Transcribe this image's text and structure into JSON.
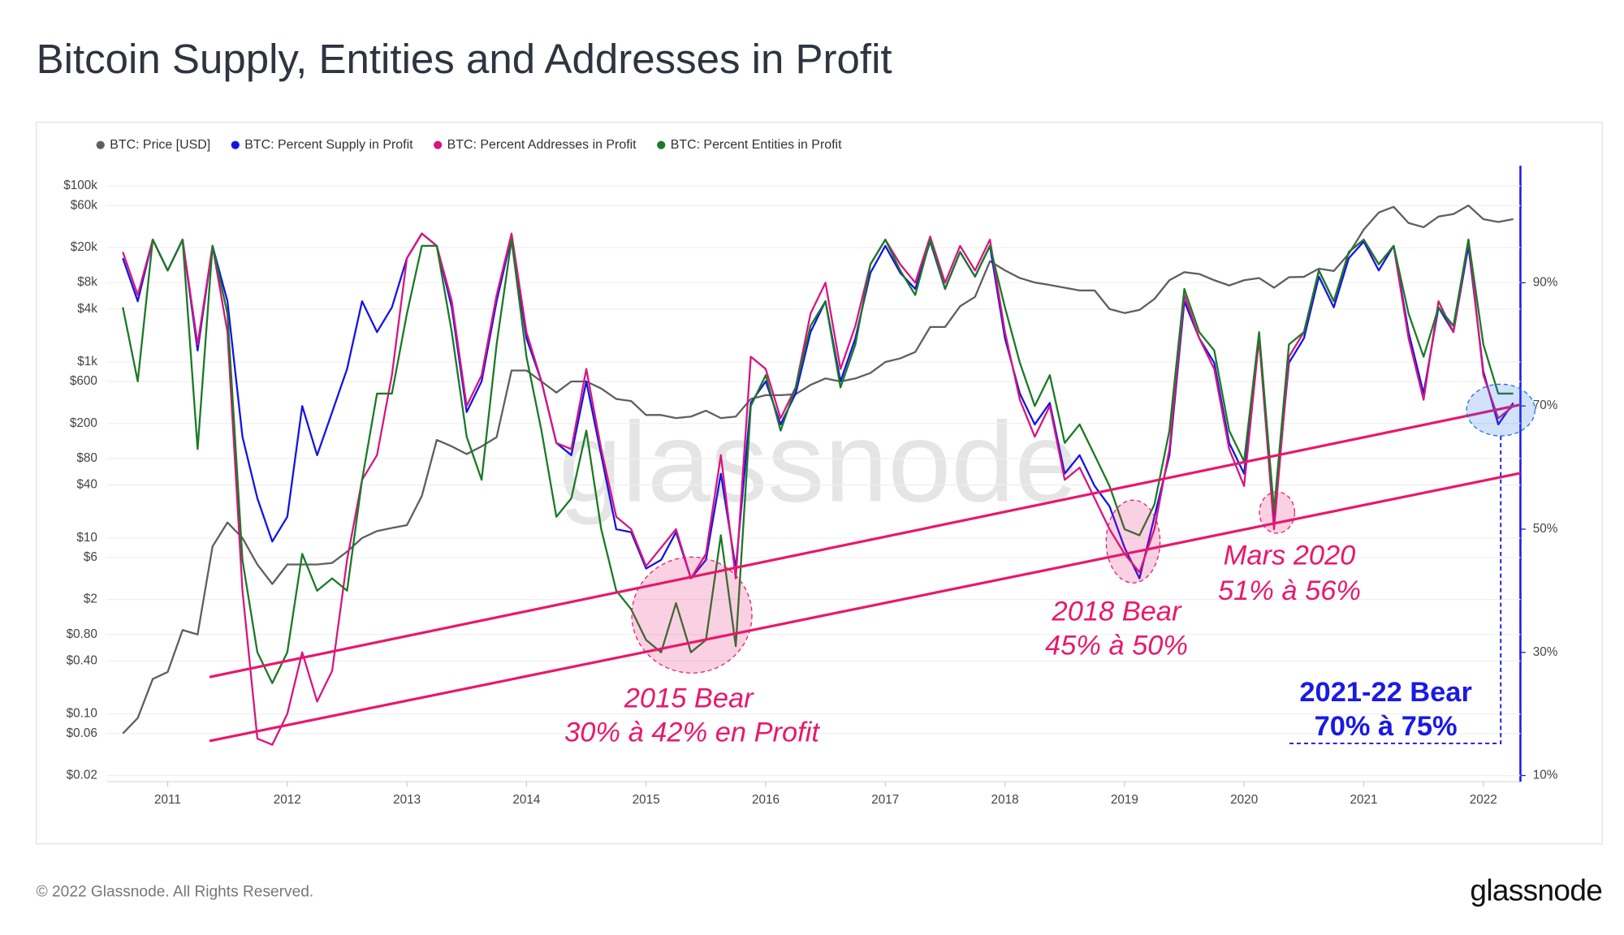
{
  "chart_data": {
    "type": "line",
    "title": "Bitcoin Supply, Entities and Addresses in Profit",
    "x": [
      2010.625,
      2010.75,
      2010.875,
      2011,
      2011.125,
      2011.25,
      2011.375,
      2011.5,
      2011.625,
      2011.75,
      2011.875,
      2012,
      2012.125,
      2012.25,
      2012.375,
      2012.5,
      2012.625,
      2012.75,
      2012.875,
      2013,
      2013.125,
      2013.25,
      2013.375,
      2013.5,
      2013.625,
      2013.75,
      2013.875,
      2014,
      2014.125,
      2014.25,
      2014.375,
      2014.5,
      2014.625,
      2014.75,
      2014.875,
      2015,
      2015.125,
      2015.25,
      2015.375,
      2015.5,
      2015.625,
      2015.75,
      2015.875,
      2016,
      2016.125,
      2016.25,
      2016.375,
      2016.5,
      2016.625,
      2016.75,
      2016.875,
      2017,
      2017.125,
      2017.25,
      2017.375,
      2017.5,
      2017.625,
      2017.75,
      2017.875,
      2018,
      2018.125,
      2018.25,
      2018.375,
      2018.5,
      2018.625,
      2018.75,
      2018.875,
      2019,
      2019.125,
      2019.25,
      2019.375,
      2019.5,
      2019.625,
      2019.75,
      2019.875,
      2020,
      2020.125,
      2020.25,
      2020.375,
      2020.5,
      2020.625,
      2020.75,
      2020.875,
      2021,
      2021.125,
      2021.25,
      2021.375,
      2021.5,
      2021.625,
      2021.75,
      2021.875,
      2022,
      2022.125,
      2022.25
    ],
    "series": [
      {
        "name": "BTC: Price [USD]",
        "color": "#5f5f5f",
        "axis": "y",
        "values": [
          0.06,
          0.09,
          0.25,
          0.3,
          0.9,
          0.8,
          8,
          15,
          10,
          5,
          3,
          5,
          5,
          5,
          5.2,
          7,
          10,
          12,
          13,
          14,
          30,
          130,
          110,
          90,
          110,
          140,
          800,
          800,
          600,
          450,
          600,
          600,
          500,
          380,
          360,
          250,
          250,
          230,
          240,
          280,
          230,
          240,
          380,
          420,
          420,
          430,
          550,
          650,
          600,
          650,
          750,
          1000,
          1100,
          1300,
          2500,
          2500,
          4300,
          5500,
          14000,
          11000,
          9000,
          8000,
          7500,
          7000,
          6500,
          6500,
          4000,
          3600,
          3900,
          5200,
          8500,
          10500,
          10000,
          8500,
          7400,
          8500,
          9000,
          7000,
          9200,
          9300,
          11500,
          10800,
          17000,
          32000,
          50000,
          58000,
          38000,
          34000,
          45000,
          48000,
          60000,
          42000,
          39000,
          42000
        ]
      },
      {
        "name": "BTC: Percent Supply in Profit",
        "color": "#1414e6",
        "axis": "y2",
        "values": [
          94,
          87,
          97,
          92,
          97,
          79,
          96,
          87,
          65,
          55,
          48,
          52,
          70,
          62,
          69,
          76,
          87,
          82,
          86,
          94,
          98,
          96,
          86,
          69,
          74,
          87,
          97.5,
          81,
          74,
          64,
          62,
          74,
          62,
          50,
          49.5,
          43.6,
          45,
          49.5,
          42,
          45,
          59,
          43.6,
          70.5,
          74,
          67,
          72,
          82,
          87,
          74,
          81,
          91.6,
          96,
          91.6,
          89,
          96.7,
          89,
          95,
          91,
          96,
          81,
          72,
          67,
          70.5,
          59,
          62,
          57,
          53.7,
          47,
          42,
          52,
          62,
          87,
          81,
          77,
          64,
          59,
          81,
          52,
          77,
          81,
          91,
          86,
          94,
          96.7,
          92,
          96,
          82,
          72,
          86,
          82,
          96,
          75.6,
          67,
          70.5
        ]
      },
      {
        "name": "BTC: Percent Addresses in Profit",
        "color": "#d6177f",
        "axis": "y2",
        "values": [
          95,
          88,
          97,
          92,
          97,
          80,
          96,
          82,
          40,
          16,
          15,
          20,
          30,
          22,
          27,
          45,
          58,
          62,
          75,
          94,
          98,
          96,
          87,
          70,
          75,
          88,
          98,
          82,
          74,
          64,
          63,
          76,
          63,
          52,
          50,
          44,
          47,
          50,
          42,
          46,
          62,
          42,
          78,
          76,
          68,
          73,
          85,
          90,
          76,
          83,
          93,
          97,
          93,
          90,
          97.5,
          90,
          96,
          92,
          97,
          82,
          71,
          65,
          70,
          58,
          60,
          55,
          50,
          46,
          43,
          50,
          63,
          88,
          81,
          76,
          63,
          57,
          81,
          50,
          78,
          82,
          92,
          87,
          95,
          97,
          93,
          96,
          81,
          71,
          87,
          82,
          97,
          75,
          68,
          70
        ]
      },
      {
        "name": "BTC: Percent Entities in Profit",
        "color": "#1b7a26",
        "axis": "y2",
        "values": [
          86,
          74,
          97,
          92,
          97,
          63,
          96,
          85,
          45,
          30,
          25,
          30,
          46,
          40,
          42,
          40,
          58,
          72,
          72,
          85,
          96,
          96,
          82,
          65,
          58,
          80,
          97,
          78,
          66,
          52,
          55,
          66,
          50,
          40,
          37,
          32,
          30,
          38,
          30,
          32,
          49,
          31,
          70,
          75,
          66,
          73,
          83,
          87,
          73,
          80,
          93,
          97,
          92,
          88,
          97,
          89,
          95,
          91,
          96,
          86,
          77,
          70,
          75,
          64,
          67,
          62,
          57,
          50,
          49,
          54,
          66,
          89,
          82,
          79,
          66,
          61,
          82,
          53,
          80,
          82,
          92,
          87,
          95,
          97,
          93,
          96,
          85,
          78,
          86,
          83,
          97,
          80,
          72,
          72
        ]
      }
    ],
    "xlim": [
      2010.49,
      2022.31
    ],
    "xticks": [
      2011,
      2012,
      2013,
      2014,
      2015,
      2016,
      2017,
      2018,
      2019,
      2020,
      2021,
      2022
    ],
    "y_scale": "log",
    "ylim": [
      0.017,
      170000
    ],
    "yticks": [
      {
        "value": 0.02,
        "label": "$0.02"
      },
      {
        "value": 0.06,
        "label": "$0.06"
      },
      {
        "value": 0.1,
        "label": "$0.10"
      },
      {
        "value": 0.4,
        "label": "$0.40"
      },
      {
        "value": 0.8,
        "label": "$0.80"
      },
      {
        "value": 2,
        "label": "$2"
      },
      {
        "value": 6,
        "label": "$6"
      },
      {
        "value": 10,
        "label": "$10"
      },
      {
        "value": 40,
        "label": "$40"
      },
      {
        "value": 80,
        "label": "$80"
      },
      {
        "value": 200,
        "label": "$200"
      },
      {
        "value": 600,
        "label": "$600"
      },
      {
        "value": 1000,
        "label": "$1k"
      },
      {
        "value": 4000,
        "label": "$4k"
      },
      {
        "value": 8000,
        "label": "$8k"
      },
      {
        "value": 20000,
        "label": "$20k"
      },
      {
        "value": 60000,
        "label": "$60k"
      },
      {
        "value": 100000,
        "label": "$100k"
      }
    ],
    "y2lim": [
      9,
      109
    ],
    "y2ticks": [
      {
        "value": 10,
        "label": "10%"
      },
      {
        "value": 30,
        "label": "30%"
      },
      {
        "value": 50,
        "label": "50%"
      },
      {
        "value": 70,
        "label": "70%"
      },
      {
        "value": 90,
        "label": "90%"
      }
    ],
    "grid": true,
    "legend": "top-left",
    "reference_lines": [
      {
        "color": "#e8186d",
        "x": [
          2011.35,
          2022.31
        ],
        "values": [
          26,
          70.2
        ]
      },
      {
        "color": "#e8186d",
        "x": [
          2011.35,
          2022.31
        ],
        "values": [
          15.6,
          59.1
        ]
      }
    ],
    "annotations": [
      "2015 Bear",
      "30% à 42% en Profit",
      "2018 Bear",
      "45% à 50%",
      "Mars 2020",
      "51% à 56%",
      "2021-22 Bear",
      "70% à 75%"
    ],
    "watermark": "glassnode"
  },
  "footer": {
    "copyright": "© 2022 Glassnode. All Rights Reserved.",
    "logo": "glassnode"
  }
}
